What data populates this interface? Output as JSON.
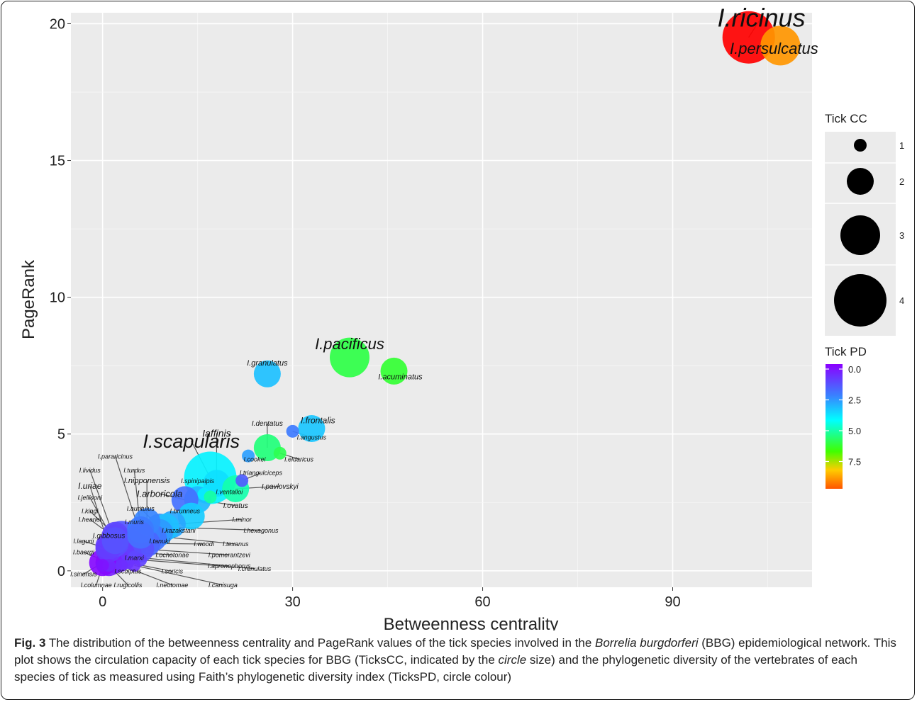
{
  "chart_data": {
    "type": "scatter",
    "title": "",
    "xlabel": "Betweenness centrality",
    "ylabel": "PageRank",
    "xlim": [
      -5,
      112
    ],
    "ylim": [
      -0.6,
      20.4
    ],
    "x_ticks": [
      0,
      30,
      60,
      90
    ],
    "y_ticks": [
      0,
      5,
      10,
      15,
      20
    ],
    "grid": true,
    "size_legend": {
      "title": "Tick CC",
      "items": [
        "1",
        "2",
        "3",
        "4"
      ]
    },
    "color_legend": {
      "title": "Tick PD",
      "ticks": [
        "0.0",
        "2.5",
        "5.0",
        "7.5"
      ],
      "range": [
        0,
        10
      ]
    },
    "points": [
      {
        "name": "I.ricinus",
        "x": 102,
        "y": 19.5,
        "cc": 4,
        "pd": 10,
        "label_size": 36,
        "lx": 104,
        "ly": 19.9
      },
      {
        "name": "I.persulcatus",
        "x": 107,
        "y": 19.2,
        "cc": 3,
        "pd": 8.9,
        "label_size": 22,
        "lx": 106,
        "ly": 18.9
      },
      {
        "name": "I.pacificus",
        "x": 39,
        "y": 7.8,
        "cc": 3,
        "pd": 6.3,
        "label_size": 22,
        "lx": 39,
        "ly": 8.1
      },
      {
        "name": "I.acuminatus",
        "x": 46,
        "y": 7.3,
        "cc": 2,
        "pd": 6.5,
        "label_size": 11,
        "lx": 47,
        "ly": 7.0
      },
      {
        "name": "I.granulatus",
        "x": 26,
        "y": 7.2,
        "cc": 2,
        "pd": 3.5,
        "label_size": 11,
        "lx": 26,
        "ly": 7.5
      },
      {
        "name": "I.frontalis",
        "x": 33,
        "y": 5.2,
        "cc": 2,
        "pd": 3.6,
        "label_size": 12,
        "lx": 34,
        "ly": 5.4
      },
      {
        "name": "I.dentatus",
        "x": 26,
        "y": 4.5,
        "cc": 2,
        "pd": 5.8,
        "label_size": 10,
        "lx": 26,
        "ly": 5.3
      },
      {
        "name": "I.angustus",
        "x": 30,
        "y": 5.1,
        "cc": 1,
        "pd": 2.4,
        "label_size": 9,
        "lx": 33,
        "ly": 4.8
      },
      {
        "name": "I.eldaricus",
        "x": 28,
        "y": 4.3,
        "cc": 1,
        "pd": 6.2,
        "label_size": 9,
        "lx": 31,
        "ly": 4.0
      },
      {
        "name": "I.cookei",
        "x": 23,
        "y": 4.2,
        "cc": 1,
        "pd": 3.0,
        "label_size": 9,
        "lx": 24,
        "ly": 4.0
      },
      {
        "name": "I.scapularis",
        "x": 17,
        "y": 3.4,
        "cc": 4,
        "pd": 4.3,
        "label_size": 27,
        "lx": 14,
        "ly": 4.5
      },
      {
        "name": "Iaffinis",
        "x": 18,
        "y": 3.2,
        "cc": 2,
        "pd": 4.0,
        "label_size": 14,
        "lx": 18,
        "ly": 4.9
      },
      {
        "name": "I.triangulciceps",
        "x": 22,
        "y": 3.3,
        "cc": 1,
        "pd": 1.8,
        "label_size": 9,
        "lx": 25,
        "ly": 3.5
      },
      {
        "name": "I.pavlovskyi",
        "x": 21,
        "y": 3.0,
        "cc": 2,
        "pd": 5.3,
        "label_size": 10,
        "lx": 28,
        "ly": 3.0
      },
      {
        "name": "I.spinipalpis",
        "x": 16,
        "y": 2.8,
        "cc": 1,
        "pd": 4.2,
        "label_size": 9,
        "lx": 15,
        "ly": 3.2
      },
      {
        "name": "I.ventalloi",
        "x": 17,
        "y": 2.7,
        "cc": 1,
        "pd": 5.4,
        "label_size": 9,
        "lx": 20,
        "ly": 2.8
      },
      {
        "name": "I.ovatus",
        "x": 15,
        "y": 2.6,
        "cc": 2,
        "pd": 3.4,
        "label_size": 10,
        "lx": 21,
        "ly": 2.3
      },
      {
        "name": "I.arboricola",
        "x": 13,
        "y": 2.6,
        "cc": 2,
        "pd": 2.2,
        "label_size": 13,
        "lx": 9,
        "ly": 2.7
      },
      {
        "name": "I.brunneus",
        "x": 14,
        "y": 2.0,
        "cc": 2,
        "pd": 3.7,
        "label_size": 9,
        "lx": 13,
        "ly": 2.1
      },
      {
        "name": "I.minor",
        "x": 11,
        "y": 1.7,
        "cc": 2,
        "pd": 3.1,
        "label_size": 9,
        "lx": 22,
        "ly": 1.8
      },
      {
        "name": "I.auritulus",
        "x": 9,
        "y": 1.6,
        "cc": 2,
        "pd": 2.7,
        "label_size": 9,
        "lx": 6,
        "ly": 2.2
      },
      {
        "name": "I.hexagonus",
        "x": 10,
        "y": 1.6,
        "cc": 2,
        "pd": 3.5,
        "label_size": 9,
        "lx": 25,
        "ly": 1.4
      },
      {
        "name": "I.kazakstani",
        "x": 9,
        "y": 1.4,
        "cc": 2,
        "pd": 2.9,
        "label_size": 9,
        "lx": 12,
        "ly": 1.4
      },
      {
        "name": "I.muris",
        "x": 8,
        "y": 1.2,
        "cc": 2,
        "pd": 2.3,
        "label_size": 9,
        "lx": 5,
        "ly": 1.7
      },
      {
        "name": "I.texanus",
        "x": 7,
        "y": 1.3,
        "cc": 2,
        "pd": 2.5,
        "label_size": 9,
        "lx": 21,
        "ly": 0.9
      },
      {
        "name": "I.woodi",
        "x": 7,
        "y": 1.0,
        "cc": 2,
        "pd": 2.0,
        "label_size": 9,
        "lx": 16,
        "ly": 0.9
      },
      {
        "name": "I.tanuki",
        "x": 5,
        "y": 1.0,
        "cc": 2,
        "pd": 1.9,
        "label_size": 9,
        "lx": 9,
        "ly": 1.0
      },
      {
        "name": "I.gibbosus",
        "x": 3,
        "y": 1.1,
        "cc": 3,
        "pd": 1.7,
        "label_size": 10,
        "lx": 1,
        "ly": 1.2
      },
      {
        "name": "I.pomerantzevi",
        "x": 6,
        "y": 0.8,
        "cc": 2,
        "pd": 1.6,
        "label_size": 9,
        "lx": 20,
        "ly": 0.5
      },
      {
        "name": "I.ochotonae",
        "x": 4,
        "y": 0.7,
        "cc": 2,
        "pd": 1.5,
        "label_size": 9,
        "lx": 11,
        "ly": 0.5
      },
      {
        "name": "I.marxi",
        "x": 3,
        "y": 0.6,
        "cc": 2,
        "pd": 1.2,
        "label_size": 9,
        "lx": 5,
        "ly": 0.4
      },
      {
        "name": "I.apronophorus",
        "x": 5,
        "y": 0.5,
        "cc": 1,
        "pd": 1.4,
        "label_size": 9,
        "lx": 20,
        "ly": 0.1
      },
      {
        "name": "I.crenulatus",
        "x": 6,
        "y": 0.4,
        "cc": 1,
        "pd": 1.3,
        "label_size": 9,
        "lx": 24,
        "ly": 0.0
      },
      {
        "name": "I.sculptus",
        "x": 2,
        "y": 0.4,
        "cc": 2,
        "pd": 1.0,
        "label_size": 9,
        "lx": 4,
        "ly": -0.1
      },
      {
        "name": "I.soricis",
        "x": 4,
        "y": 0.3,
        "cc": 1,
        "pd": 1.1,
        "label_size": 9,
        "lx": 11,
        "ly": -0.1
      },
      {
        "name": "I.baergi",
        "x": 1,
        "y": 0.3,
        "cc": 2,
        "pd": 0.6,
        "label_size": 9,
        "lx": -3,
        "ly": 0.6
      },
      {
        "name": "I.sinensis",
        "x": 0,
        "y": 0.3,
        "cc": 2,
        "pd": 0.2,
        "label_size": 9,
        "lx": -3,
        "ly": -0.2
      },
      {
        "name": "I.rugicollis",
        "x": 1,
        "y": 0.2,
        "cc": 1,
        "pd": 0.8,
        "label_size": 9,
        "lx": 4,
        "ly": -0.6
      },
      {
        "name": "I.neotomae",
        "x": 3,
        "y": 0.2,
        "cc": 1,
        "pd": 0.9,
        "label_size": 9,
        "lx": 11,
        "ly": -0.6
      },
      {
        "name": "I.canisuga",
        "x": 5,
        "y": 0.2,
        "cc": 1,
        "pd": 1.0,
        "label_size": 9,
        "lx": 19,
        "ly": -0.6
      },
      {
        "name": "I.columnae",
        "x": 0,
        "y": 0.2,
        "cc": 1,
        "pd": 0.4,
        "label_size": 9,
        "lx": -1,
        "ly": -0.6
      },
      {
        "name": "I.lagurii",
        "x": 1,
        "y": 0.8,
        "cc": 2,
        "pd": 1.1,
        "label_size": 9,
        "lx": -3,
        "ly": 1.0
      },
      {
        "name": "I.hearlei",
        "x": 2,
        "y": 1.2,
        "cc": 2,
        "pd": 1.3,
        "label_size": 9,
        "lx": -2,
        "ly": 1.8
      },
      {
        "name": "I.kingi",
        "x": 2,
        "y": 1.3,
        "cc": 2,
        "pd": 1.4,
        "label_size": 9,
        "lx": -2,
        "ly": 2.1
      },
      {
        "name": "I.jellisoni",
        "x": 2,
        "y": 1.0,
        "cc": 2,
        "pd": 1.5,
        "label_size": 9,
        "lx": -2,
        "ly": 2.6
      },
      {
        "name": "I.uriae",
        "x": 1,
        "y": 0.9,
        "cc": 2,
        "pd": 1.2,
        "label_size": 12,
        "lx": -2,
        "ly": 3.0
      },
      {
        "name": "I.lividus",
        "x": 2,
        "y": 1.1,
        "cc": 2,
        "pd": 1.6,
        "label_size": 9,
        "lx": -2,
        "ly": 3.6
      },
      {
        "name": "I.nipponensis",
        "x": 7,
        "y": 1.8,
        "cc": 2,
        "pd": 2.6,
        "label_size": 11,
        "lx": 7,
        "ly": 3.2
      },
      {
        "name": "I.turdus",
        "x": 6,
        "y": 1.5,
        "cc": 2,
        "pd": 2.4,
        "label_size": 9,
        "lx": 5,
        "ly": 3.6
      },
      {
        "name": "I.pararicinus",
        "x": 6,
        "y": 1.3,
        "cc": 2,
        "pd": 2.2,
        "label_size": 9,
        "lx": 2,
        "ly": 4.1
      }
    ]
  },
  "caption": {
    "label": "Fig. 3",
    "t1": " The distribution of the betweenness centrality and PageRank values of the tick species involved in the ",
    "species": "Borrelia burgdorferi",
    "t2": " (BBG) epidemiological network. This plot shows the circulation capacity of each tick species for BBG (TicksCC, indicated by the ",
    "circle": "circle",
    "t3": " size) and the phylogenetic diversity of the vertebrates of each species of tick as measured using Faith’s phylogenetic diversity index (TicksPD, circle colour)"
  }
}
